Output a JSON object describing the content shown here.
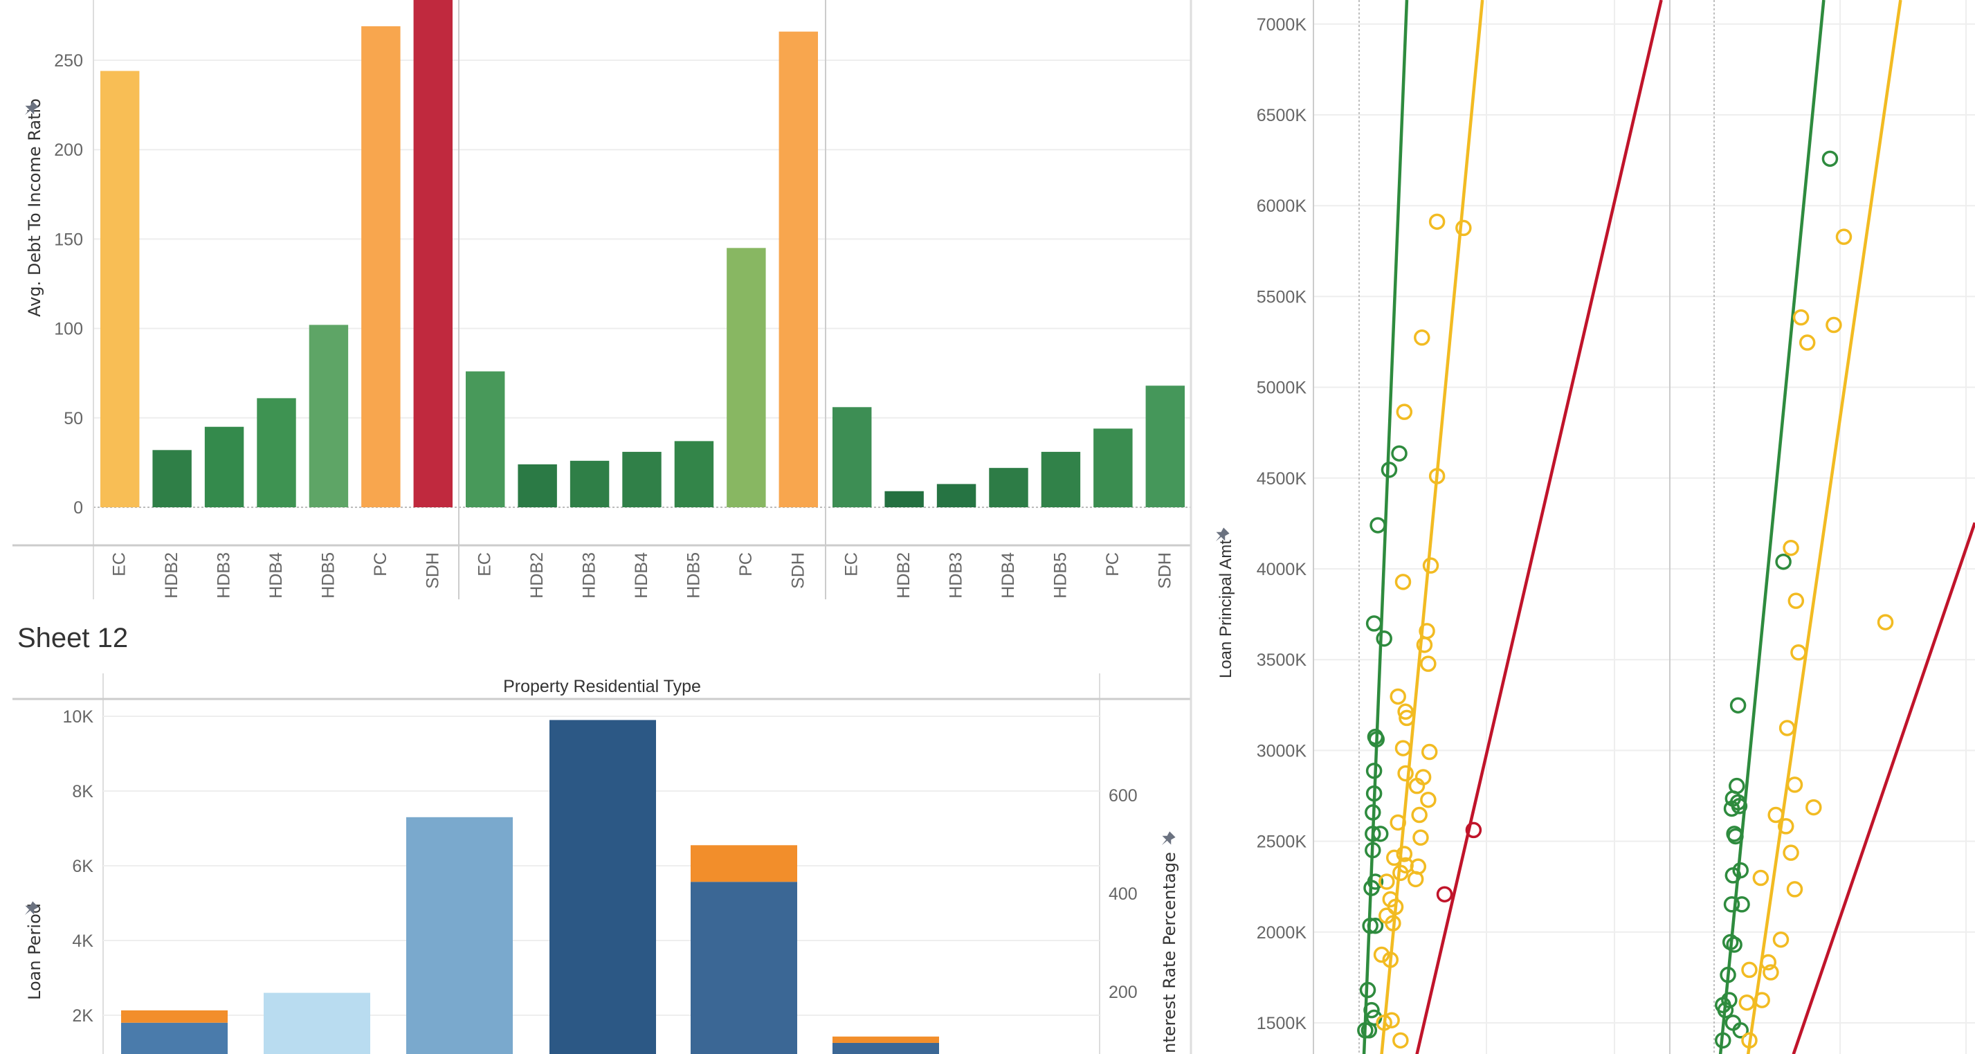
{
  "chart_data": [
    {
      "type": "bar",
      "ylabel": "Avg. Debt To Income Ratio",
      "ylim": [
        0,
        285
      ],
      "yticks": [
        0,
        50,
        100,
        150,
        200,
        250
      ],
      "grid": true,
      "panels": [
        {
          "categories": [
            "EC",
            "HDB2",
            "HDB3",
            "HDB4",
            "HDB5",
            "PC",
            "SDH"
          ],
          "values": [
            244,
            32,
            45,
            61,
            102,
            269,
            290
          ],
          "colors": [
            "#f8be55",
            "#2f7f47",
            "#348a4c",
            "#3e9352",
            "#5ea566",
            "#f8a64e",
            "#c0293e"
          ]
        },
        {
          "categories": [
            "EC",
            "HDB2",
            "HDB3",
            "HDB4",
            "HDB5",
            "PC",
            "SDH"
          ],
          "values": [
            76,
            24,
            26,
            31,
            37,
            145,
            266
          ],
          "colors": [
            "#48995a",
            "#2b7a45",
            "#2f7f47",
            "#308048",
            "#338549",
            "#88b762",
            "#f8a64e"
          ]
        },
        {
          "categories": [
            "EC",
            "HDB2",
            "HDB3",
            "HDB4",
            "HDB5",
            "PC",
            "SDH"
          ],
          "values": [
            56,
            9,
            13,
            22,
            31,
            44,
            68
          ],
          "colors": [
            "#3d8e54",
            "#247040",
            "#267443",
            "#2d7c46",
            "#318249",
            "#3a8d50",
            "#45975a"
          ]
        }
      ]
    },
    {
      "type": "bar",
      "title": "Sheet 12",
      "header": "Property Residential Type",
      "ylabel": "Loan Period",
      "y2label": "Interest Rate Percentage",
      "yticks": [
        "2K",
        "4K",
        "6K",
        "8K",
        "10K"
      ],
      "y2ticks": [
        "200",
        "400",
        "600"
      ],
      "grid": true,
      "stacked": true,
      "series": [
        {
          "values": [
            1800,
            2600,
            7300,
            9900,
            5570,
            1260
          ],
          "colors": [
            "#4a7bab",
            "#b9dcf0",
            "#7aa9cd",
            "#2c5885",
            "#3b6795",
            "#3b6795"
          ]
        },
        {
          "values": [
            330,
            0,
            0,
            0,
            980,
            170
          ],
          "colors": [
            "#f28e2b",
            "#f28e2b",
            "#f28e2b",
            "#f28e2b",
            "#f28e2b",
            "#f28e2b"
          ]
        }
      ]
    },
    {
      "type": "scatter",
      "ylabel": "Loan Principal Amt",
      "yticks": [
        "1500K",
        "2000K",
        "2500K",
        "3000K",
        "3500K",
        "4000K",
        "4500K",
        "5000K",
        "5500K",
        "6000K",
        "6500K",
        "7000K"
      ],
      "trend_lines": true,
      "colors": {
        "green": "#2e8b3e",
        "yellow": "#f2bb22",
        "red": "#c0142a"
      },
      "grid": true
    }
  ]
}
